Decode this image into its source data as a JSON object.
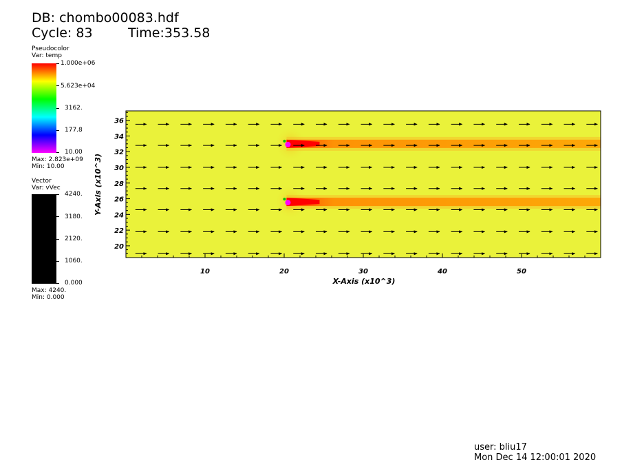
{
  "header": {
    "db_line": "DB: chombo00083.hdf",
    "cycle_line": "Cycle: 83",
    "time_line": "Time:353.58"
  },
  "pseudocolor_legend": {
    "plot_type": "Pseudocolor",
    "var_line": "Var: temp",
    "ticks": [
      "1.000e+06",
      "5.623e+04",
      "3162.",
      "177.8",
      "10.00"
    ],
    "max_line": "Max:  2.823e+09",
    "min_line": "Min:  10.00",
    "colors": [
      "#ff0000",
      "#ffff00",
      "#00ff00",
      "#00ffff",
      "#0000ff",
      "#ff00ff"
    ]
  },
  "vector_legend": {
    "plot_type": "Vector",
    "var_line": "Var: vVec",
    "ticks": [
      "4240.",
      "3180.",
      "2120.",
      "1060.",
      "0.000"
    ],
    "max_line": "Max:  4240.",
    "min_line": "Min:  0.000",
    "bar_color": "#000000"
  },
  "chart_data": {
    "type": "heatmap",
    "subtype": "pseudocolor with vector overlay",
    "xlabel": "X-Axis (x10^3)",
    "ylabel": "Y-Axis (x10^3)",
    "xlim": [
      0,
      60
    ],
    "ylim": [
      18.5,
      37.2
    ],
    "x_major_ticks": [
      10,
      20,
      30,
      40,
      50
    ],
    "y_major_ticks": [
      20,
      22,
      24,
      26,
      28,
      30,
      32,
      34,
      36
    ],
    "background_color": "#eaf23a",
    "plume_color": "#ff0000",
    "hot_spots": [
      {
        "x": 20.3,
        "y": 33.0,
        "plume_end_x": 60
      },
      {
        "x": 20.3,
        "y": 25.6,
        "plume_end_x": 60
      }
    ],
    "vector_rows_y": [
      19.0,
      21.8,
      24.6,
      27.3,
      30.0,
      32.8,
      35.5
    ],
    "vector_start_x": 1.2,
    "vector_spacing_x": 2.85,
    "vector_length": 1.4,
    "grid": false
  },
  "footer": {
    "user_line": "user: bliu17",
    "date_line": "Mon Dec 14 12:00:01 2020"
  }
}
